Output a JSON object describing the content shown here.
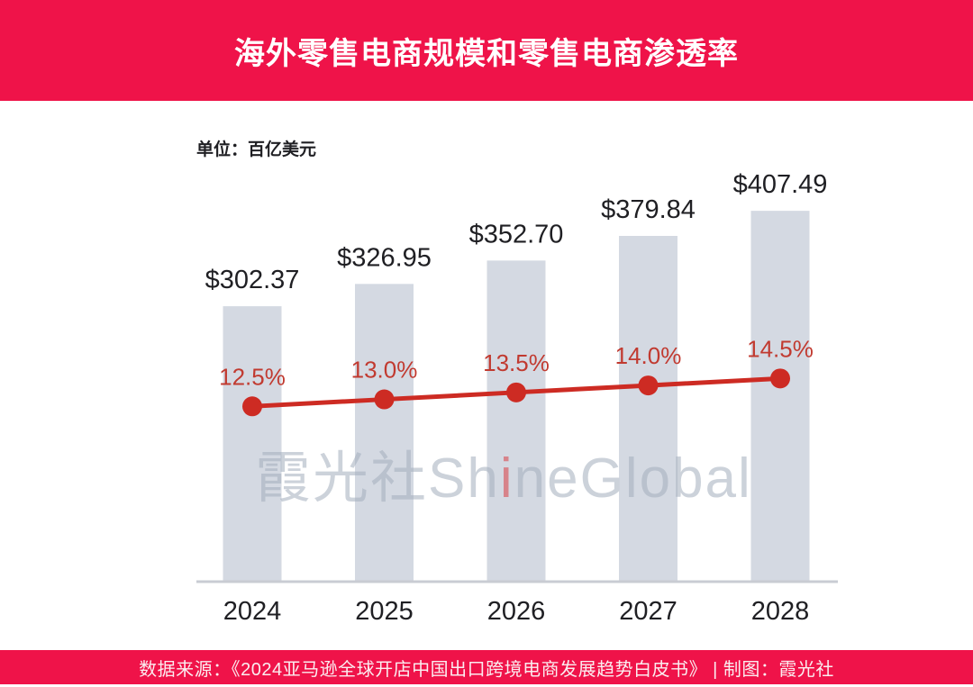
{
  "banner": {
    "title": "海外零售电商规模和零售电商渗透率",
    "background": "#EF1349"
  },
  "unit_label": "单位：百亿美元",
  "watermark": {
    "before": "霞光社Sh",
    "accent": "i",
    "after": "neGlobal"
  },
  "footer": {
    "text": "数据来源：《2024亚马逊全球开店中国出口跨境电商发展趋势白皮书》 | 制图：霞光社",
    "background": "#EF1349"
  },
  "chart_data": {
    "type": "bar",
    "title": "海外零售电商规模和零售电商渗透率",
    "xlabel": "",
    "ylabel": "百亿美元",
    "categories": [
      "2024",
      "2025",
      "2026",
      "2027",
      "2028"
    ],
    "series": [
      {
        "name": "海外零售电商规模",
        "type": "bar",
        "values": [
          302.37,
          326.95,
          352.7,
          379.84,
          407.49
        ],
        "labels": [
          "$302.37",
          "$326.95",
          "$352.70",
          "$379.84",
          "$407.49"
        ],
        "color": "#D4D9E2",
        "label_color": "#1F1F23"
      },
      {
        "name": "零售电商渗透率",
        "type": "line",
        "values": [
          12.5,
          13.0,
          13.5,
          14.0,
          14.5
        ],
        "labels": [
          "12.5%",
          "13.0%",
          "13.5%",
          "14.0%",
          "14.5%"
        ],
        "color": "#CD2B23",
        "label_color": "#C13A30"
      }
    ],
    "ylim": [
      0,
      481
    ],
    "y2lim": [
      0,
      31.3
    ],
    "grid": false,
    "legend": "none",
    "axis_color": "#C9CCD3",
    "tick_color": "#1F1F23"
  }
}
